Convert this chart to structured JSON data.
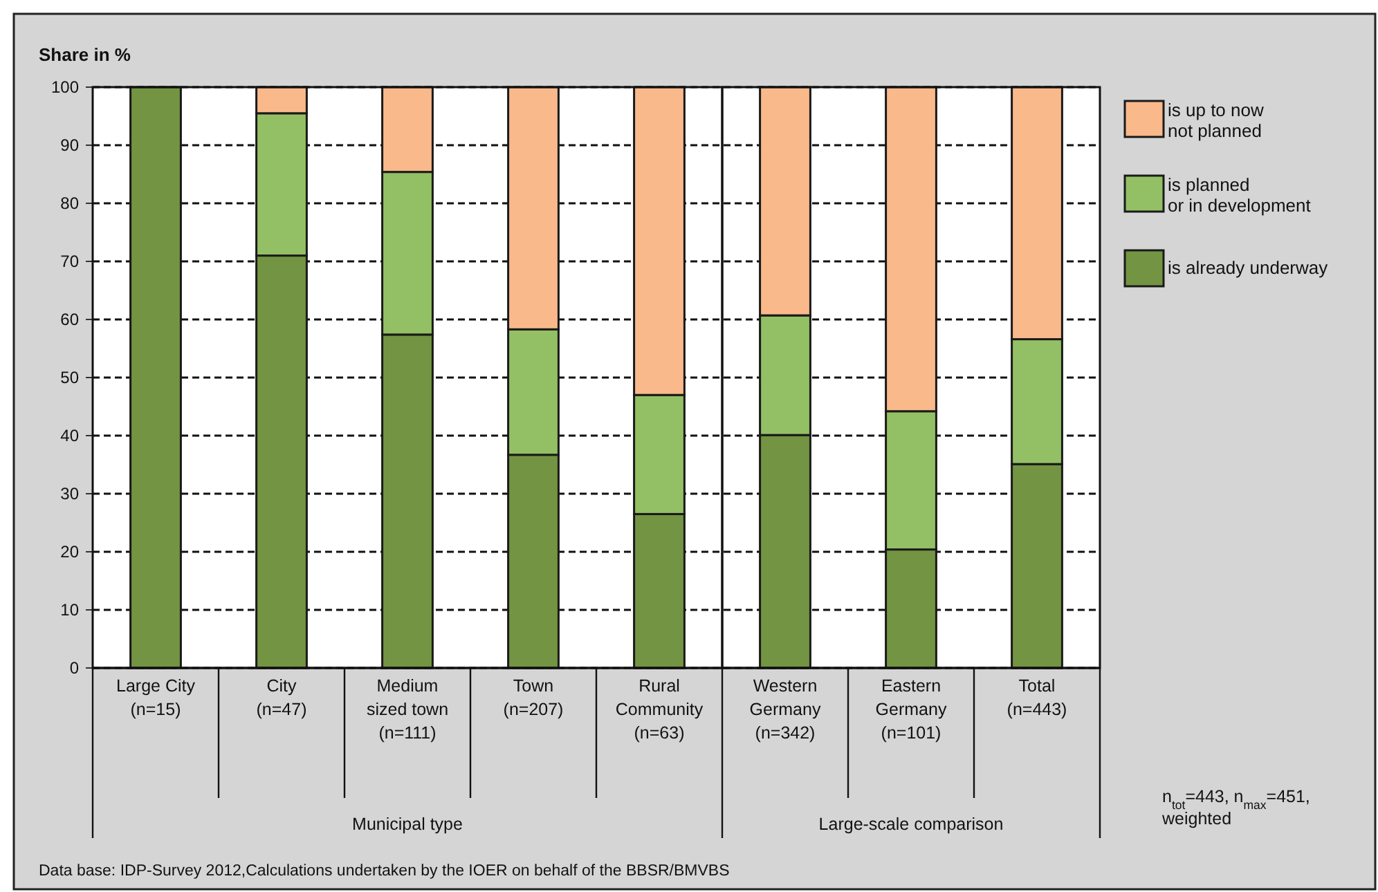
{
  "chart_data": {
    "type": "bar",
    "stacked": true,
    "ylabel": "Share in %",
    "categories": [
      "Large City (n=15)",
      "City (n=47)",
      "Medium sized town (n=111)",
      "Town (n=207)",
      "Rural Community (n=63)",
      "Western Germany (n=342)",
      "Eastern Germany (n=101)",
      "Total (n=443)"
    ],
    "series": [
      {
        "name": "is already underway",
        "color": "#739442",
        "values": [
          100,
          71,
          57.4,
          36.7,
          26.5,
          40.1,
          20.4,
          35.1
        ]
      },
      {
        "name": "is planned or in development",
        "color": "#93c064",
        "values": [
          0,
          24.5,
          28,
          21.6,
          20.5,
          20.6,
          23.8,
          21.5
        ]
      },
      {
        "name": "is up to now not planned",
        "color": "#f9b98b",
        "values": [
          0,
          4.5,
          14.6,
          41.7,
          53,
          39.3,
          55.8,
          43.4
        ]
      }
    ],
    "ylim": [
      0,
      100
    ],
    "yticks": [
      0,
      10,
      20,
      30,
      40,
      50,
      60,
      70,
      80,
      90,
      100
    ],
    "grid": "y",
    "legend": "right",
    "annotations": [
      "Municipal type",
      "Large-scale comparison",
      "n$_{tot}$=443, n$_{max}$=451, weighted",
      "Data base: IDP-Survey 2012,Calculations undertaken by the IOER on behalf of  the BBSR/BMVBS"
    ]
  }
}
